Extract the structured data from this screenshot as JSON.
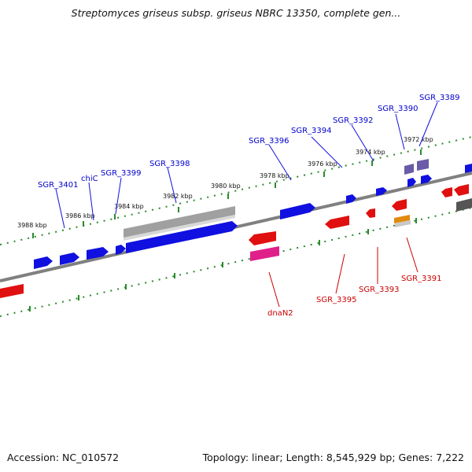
{
  "title": "Streptomyces griseus subsp. griseus NBRC 13350, complete gen...",
  "footer": {
    "accession": "Accession: NC_010572",
    "summary": "Topology: linear; Length: 8,545,929 bp; Genes: 7,222"
  },
  "colors": {
    "forward_gene": "#1010e0",
    "reverse_gene": "#e01010",
    "forward_label": "#0000cc",
    "reverse_label": "#cc0000",
    "backbone": "#808080",
    "tick": "#2a8a2a",
    "rna": "#e0208a",
    "other": "#8080c0"
  },
  "kbp_ticks": [
    "3988 kbp",
    "3986 kbp",
    "3984 kbp",
    "3982 kbp",
    "3980 kbp",
    "3978 kbp",
    "3976 kbp",
    "3974 kbp",
    "3972 kbp"
  ],
  "forward_labels": [
    "SGR_3401",
    "chiC",
    "SGR_3399",
    "SGR_3398",
    "SGR_3396",
    "SGR_3394",
    "SGR_3392",
    "SGR_3390",
    "SGR_3389"
  ],
  "reverse_labels": [
    "dnaN2",
    "SGR_3395",
    "SGR_3393",
    "SGR_3391"
  ]
}
